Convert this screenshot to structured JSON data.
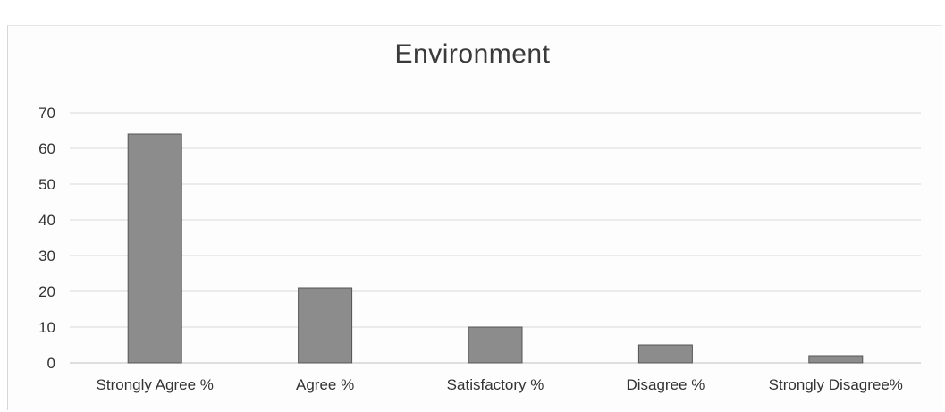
{
  "chart_data": {
    "type": "bar",
    "title": "Environment",
    "categories": [
      "Strongly Agree %",
      "Agree %",
      "Satisfactory %",
      "Disagree %",
      "Strongly Disagree%"
    ],
    "values": [
      64,
      21,
      10,
      5,
      2
    ],
    "ylim": [
      0,
      70
    ],
    "yticks": [
      0,
      10,
      20,
      30,
      40,
      50,
      60,
      70
    ],
    "grid": true,
    "legend": "none",
    "bar_color": "#8c8c8c",
    "bar_edge_color": "#555555",
    "grid_color": "#d9d9d9"
  }
}
